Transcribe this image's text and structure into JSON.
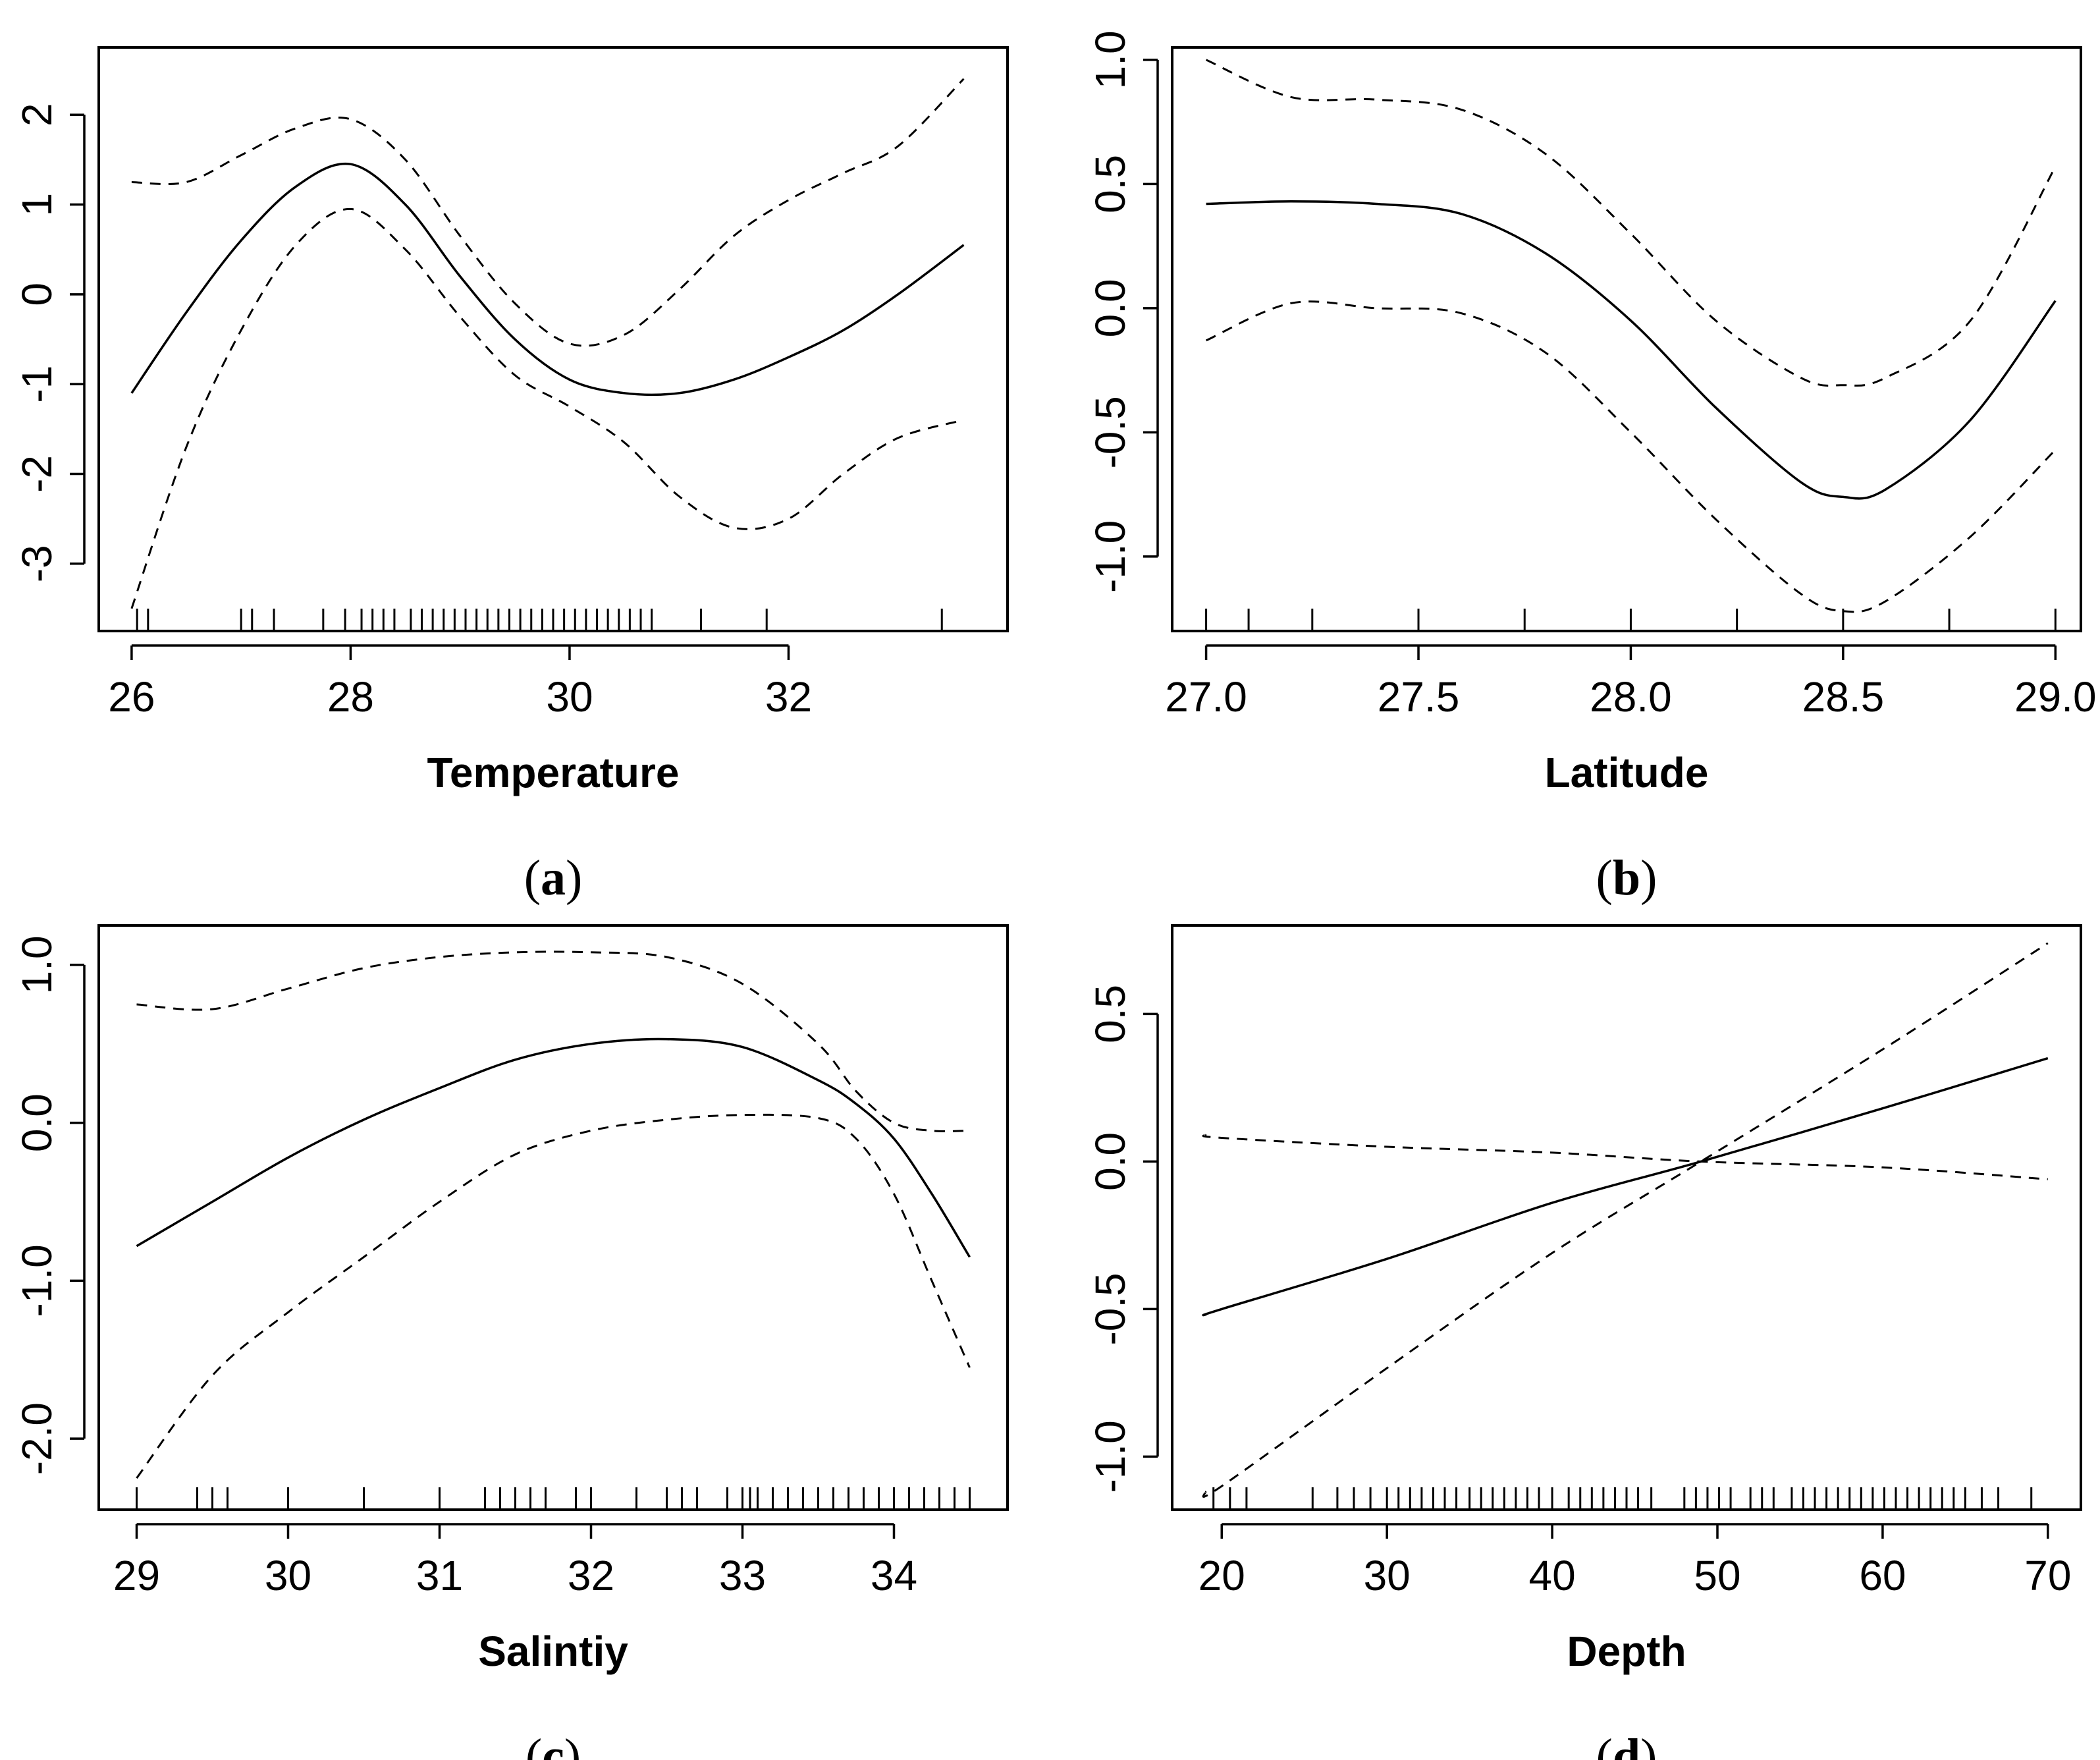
{
  "chart_data": [
    {
      "type": "line",
      "caption": "a",
      "xlabel": "Temperature",
      "ylabel": "",
      "xlim": [
        25.7,
        34.0
      ],
      "ylim": [
        -3.75,
        2.75
      ],
      "xticks": [
        26,
        28,
        30,
        32
      ],
      "xtick_labels": [
        "26",
        "28",
        "30",
        "32"
      ],
      "yticks": [
        -3,
        -2,
        -1,
        0,
        1,
        2
      ],
      "ytick_labels": [
        "-3",
        "-2",
        "-1",
        "0",
        "1",
        "2"
      ],
      "x": [
        26.0,
        26.5,
        27.0,
        27.5,
        28.0,
        28.5,
        29.0,
        29.5,
        30.0,
        30.5,
        31.0,
        31.5,
        32.0,
        32.5,
        33.0,
        33.6
      ],
      "series": [
        {
          "name": "fit",
          "style": "solid",
          "values": [
            -1.1,
            -0.2,
            0.6,
            1.2,
            1.45,
            1.0,
            0.2,
            -0.5,
            -0.95,
            -1.1,
            -1.1,
            -0.95,
            -0.7,
            -0.4,
            0.0,
            0.55
          ]
        },
        {
          "name": "upper",
          "style": "dashed",
          "values": [
            1.25,
            1.25,
            1.55,
            1.85,
            1.95,
            1.5,
            0.65,
            -0.1,
            -0.55,
            -0.45,
            0.05,
            0.65,
            1.05,
            1.35,
            1.65,
            2.4
          ]
        },
        {
          "name": "lower",
          "style": "dashed",
          "values": [
            -3.5,
            -1.7,
            -0.4,
            0.55,
            0.95,
            0.5,
            -0.25,
            -0.9,
            -1.25,
            -1.65,
            -2.25,
            -2.6,
            -2.5,
            -2.0,
            -1.6,
            -1.4
          ]
        }
      ],
      "rug": [
        26.05,
        26.15,
        27.0,
        27.1,
        27.3,
        27.75,
        27.95,
        28.1,
        28.2,
        28.3,
        28.4,
        28.55,
        28.65,
        28.75,
        28.85,
        28.95,
        29.05,
        29.15,
        29.25,
        29.35,
        29.45,
        29.55,
        29.65,
        29.75,
        29.85,
        29.95,
        30.05,
        30.15,
        30.25,
        30.35,
        30.45,
        30.55,
        30.65,
        30.75,
        31.2,
        31.8,
        33.4
      ]
    },
    {
      "type": "line",
      "caption": "b",
      "xlabel": "Latitude",
      "ylabel": "",
      "xlim": [
        26.92,
        29.06
      ],
      "ylim": [
        -1.3,
        1.05
      ],
      "xticks": [
        27.0,
        27.5,
        28.0,
        28.5,
        29.0
      ],
      "xtick_labels": [
        "27.0",
        "27.5",
        "28.0",
        "28.5",
        "29.0"
      ],
      "yticks": [
        -1.0,
        -0.5,
        0.0,
        0.5,
        1.0
      ],
      "ytick_labels": [
        "-1.0",
        "-0.5",
        "0.0",
        "0.5",
        "1.0"
      ],
      "x": [
        27.0,
        27.2,
        27.4,
        27.6,
        27.8,
        28.0,
        28.2,
        28.4,
        28.5,
        28.6,
        28.8,
        29.0
      ],
      "series": [
        {
          "name": "fit",
          "style": "solid",
          "values": [
            0.42,
            0.43,
            0.42,
            0.38,
            0.22,
            -0.05,
            -0.4,
            -0.7,
            -0.76,
            -0.73,
            -0.45,
            0.03
          ]
        },
        {
          "name": "upper",
          "style": "dashed",
          "values": [
            1.0,
            0.85,
            0.84,
            0.8,
            0.62,
            0.3,
            -0.05,
            -0.28,
            -0.31,
            -0.28,
            -0.05,
            0.57
          ]
        },
        {
          "name": "lower",
          "style": "dashed",
          "values": [
            -0.13,
            0.02,
            0.0,
            -0.02,
            -0.18,
            -0.5,
            -0.85,
            -1.15,
            -1.22,
            -1.18,
            -0.92,
            -0.57
          ]
        }
      ],
      "rug": [
        27.0,
        27.1,
        27.25,
        27.5,
        27.75,
        28.0,
        28.25,
        28.5,
        28.75,
        29.0
      ]
    },
    {
      "type": "line",
      "caption": "c",
      "xlabel": "Salintiy",
      "ylabel": "",
      "xlim": [
        28.75,
        34.75
      ],
      "ylim": [
        -2.45,
        1.25
      ],
      "xticks": [
        29,
        30,
        31,
        32,
        33,
        34
      ],
      "xtick_labels": [
        "29",
        "30",
        "31",
        "32",
        "33",
        "34"
      ],
      "yticks": [
        -2.0,
        -1.0,
        0.0,
        1.0
      ],
      "ytick_labels": [
        "-2.0",
        "-1.0",
        "0.0",
        "1.0"
      ],
      "x": [
        29.0,
        29.5,
        30.0,
        30.5,
        31.0,
        31.5,
        32.0,
        32.5,
        33.0,
        33.5,
        33.75,
        34.0,
        34.25,
        34.5
      ],
      "series": [
        {
          "name": "fit",
          "style": "solid",
          "values": [
            -0.78,
            -0.5,
            -0.22,
            0.02,
            0.22,
            0.4,
            0.5,
            0.53,
            0.48,
            0.27,
            0.12,
            -0.1,
            -0.45,
            -0.85
          ]
        },
        {
          "name": "upper",
          "style": "dashed",
          "values": [
            0.75,
            0.72,
            0.85,
            0.98,
            1.05,
            1.08,
            1.08,
            1.05,
            0.88,
            0.5,
            0.2,
            0.0,
            -0.05,
            -0.05
          ]
        },
        {
          "name": "lower",
          "style": "dashed",
          "values": [
            -2.25,
            -1.6,
            -1.2,
            -0.85,
            -0.5,
            -0.2,
            -0.05,
            0.02,
            0.05,
            0.03,
            -0.1,
            -0.45,
            -1.0,
            -1.55
          ]
        }
      ],
      "rug": [
        29.0,
        29.4,
        29.5,
        29.6,
        30.0,
        30.5,
        31.0,
        31.3,
        31.4,
        31.5,
        31.6,
        31.7,
        31.9,
        32.0,
        32.3,
        32.5,
        32.6,
        32.7,
        32.9,
        33.0,
        33.05,
        33.1,
        33.2,
        33.3,
        33.4,
        33.5,
        33.6,
        33.7,
        33.8,
        33.9,
        34.0,
        34.1,
        34.2,
        34.3,
        34.4,
        34.5
      ]
    },
    {
      "type": "line",
      "caption": "d",
      "xlabel": "Depth",
      "ylabel": "",
      "xlim": [
        17,
        72
      ],
      "ylim": [
        -1.18,
        0.8
      ],
      "xticks": [
        20,
        30,
        40,
        50,
        60,
        70
      ],
      "xtick_labels": [
        "20",
        "30",
        "40",
        "50",
        "60",
        "70"
      ],
      "yticks": [
        -1.0,
        -0.5,
        0.0,
        0.5
      ],
      "ytick_labels": [
        "-1.0",
        "-0.5",
        "0.0",
        "0.5"
      ],
      "x": [
        19,
        20,
        30,
        40,
        49,
        60,
        70
      ],
      "series": [
        {
          "name": "fit",
          "style": "solid",
          "values": [
            -0.52,
            -0.5,
            -0.33,
            -0.14,
            0.0,
            0.18,
            0.35
          ]
        },
        {
          "name": "upper",
          "style": "dashed",
          "values": [
            0.09,
            0.08,
            0.05,
            0.03,
            0.0,
            -0.02,
            -0.06
          ]
        },
        {
          "name": "lower",
          "style": "dashed",
          "values": [
            -1.12,
            -1.1,
            -0.7,
            -0.31,
            0.0,
            0.38,
            0.74
          ]
        }
      ],
      "rug": [
        19.5,
        20.5,
        21.5,
        25.5,
        27,
        28,
        29,
        30,
        30.7,
        31.4,
        32.1,
        32.8,
        33.5,
        34.2,
        35,
        35.7,
        36.4,
        37.1,
        37.8,
        38.5,
        39.2,
        40,
        41,
        41.7,
        42.4,
        43.1,
        43.8,
        44.5,
        45.2,
        46,
        48,
        48.7,
        49.4,
        50.1,
        50.8,
        52,
        52.7,
        53.4,
        54.5,
        55.2,
        55.9,
        56.6,
        57.3,
        58,
        58.7,
        59.4,
        60.1,
        60.8,
        61.5,
        62.2,
        62.9,
        63.6,
        64.3,
        65,
        66,
        67,
        69
      ]
    }
  ]
}
